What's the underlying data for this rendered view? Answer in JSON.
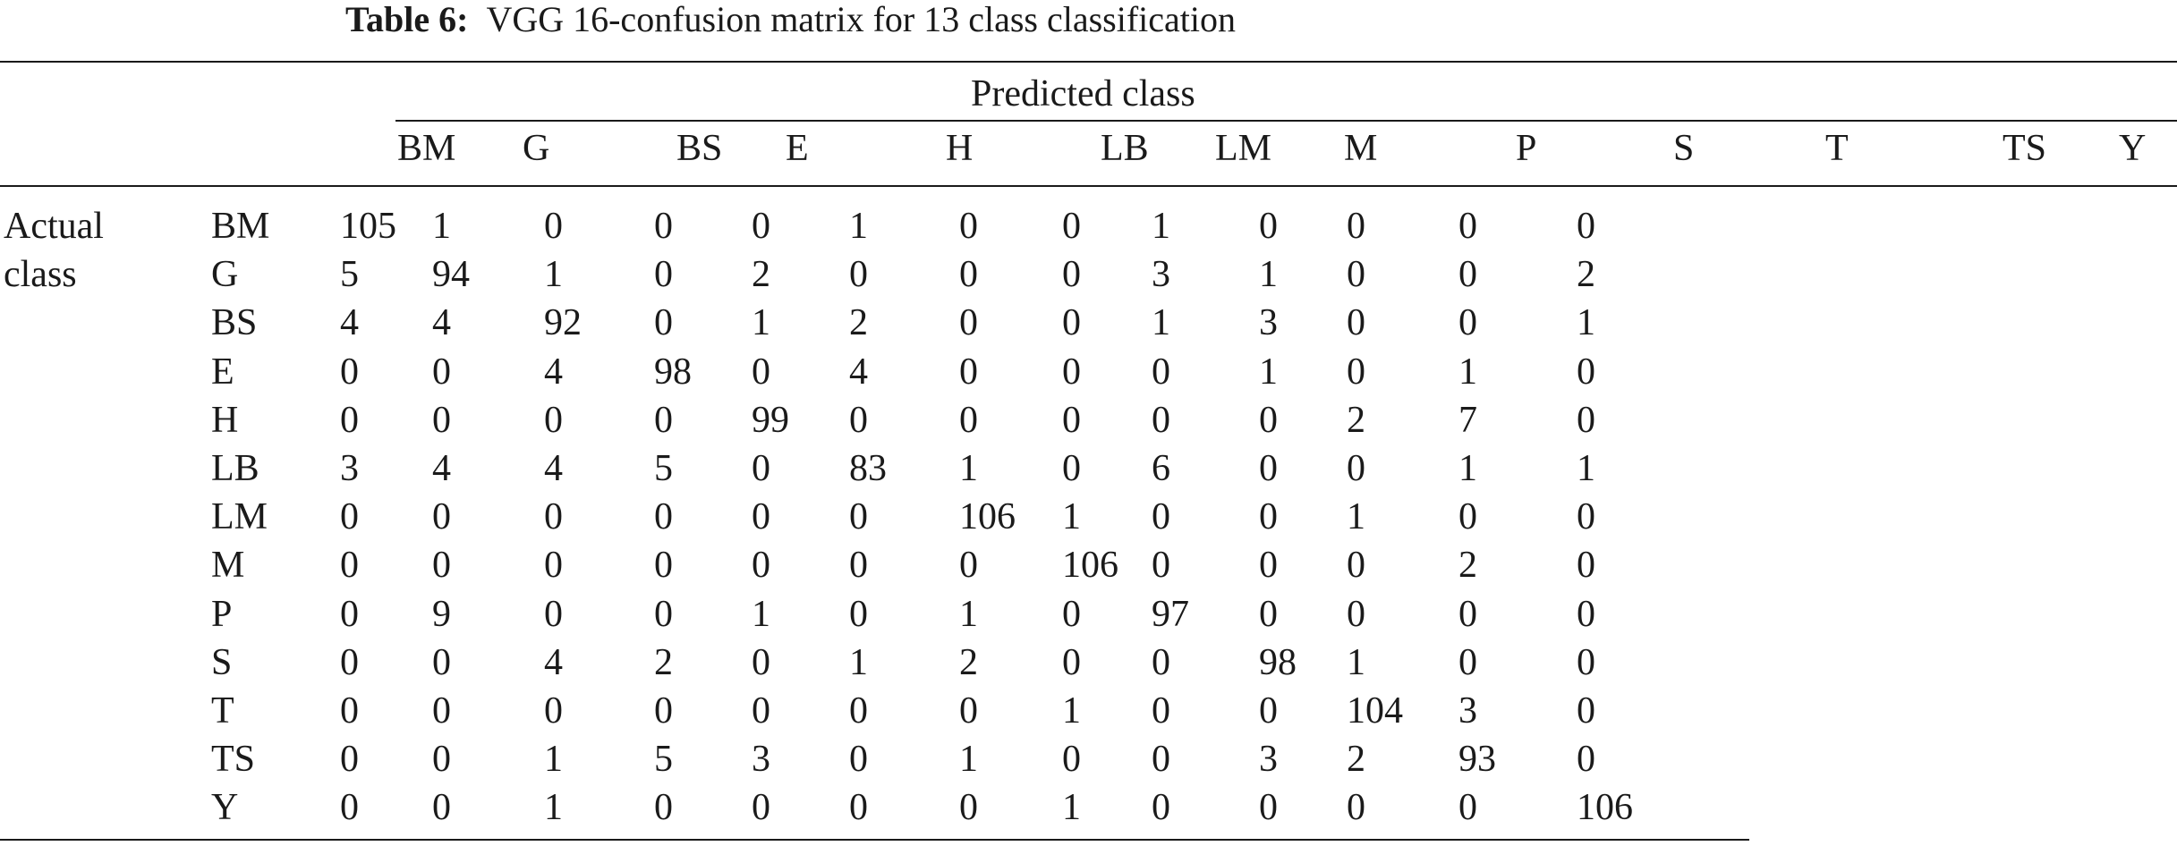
{
  "table": {
    "caption_label": "Table 6:",
    "caption_text": "VGG 16-confusion matrix for 13 class classification",
    "predicted_label": "Predicted class",
    "actual_label_line1": "Actual",
    "actual_label_line2": "class",
    "column_headers": [
      "BM",
      "G",
      "BS",
      "E",
      "H",
      "LB",
      "LM",
      "M",
      "P",
      "S",
      "T",
      "TS",
      "Y"
    ],
    "rows": [
      {
        "label": "BM",
        "values": [
          "105",
          "1",
          "0",
          "0",
          "0",
          "1",
          "0",
          "0",
          "1",
          "0",
          "0",
          "0",
          "0"
        ]
      },
      {
        "label": "G",
        "values": [
          "5",
          "94",
          "1",
          "0",
          "2",
          "0",
          "0",
          "0",
          "3",
          "1",
          "0",
          "0",
          "2"
        ]
      },
      {
        "label": "BS",
        "values": [
          "4",
          "4",
          "92",
          "0",
          "1",
          "2",
          "0",
          "0",
          "1",
          "3",
          "0",
          "0",
          "1"
        ]
      },
      {
        "label": "E",
        "values": [
          "0",
          "0",
          "4",
          "98",
          "0",
          "4",
          "0",
          "0",
          "0",
          "1",
          "0",
          "1",
          "0"
        ]
      },
      {
        "label": "H",
        "values": [
          "0",
          "0",
          "0",
          "0",
          "99",
          "0",
          "0",
          "0",
          "0",
          "0",
          "2",
          "7",
          "0"
        ]
      },
      {
        "label": "LB",
        "values": [
          "3",
          "4",
          "4",
          "5",
          "0",
          "83",
          "1",
          "0",
          "6",
          "0",
          "0",
          "1",
          "1"
        ]
      },
      {
        "label": "LM",
        "values": [
          "0",
          "0",
          "0",
          "0",
          "0",
          "0",
          "106",
          "1",
          "0",
          "0",
          "1",
          "0",
          "0"
        ]
      },
      {
        "label": "M",
        "values": [
          "0",
          "0",
          "0",
          "0",
          "0",
          "0",
          "0",
          "106",
          "0",
          "0",
          "0",
          "2",
          "0"
        ]
      },
      {
        "label": "P",
        "values": [
          "0",
          "9",
          "0",
          "0",
          "1",
          "0",
          "1",
          "0",
          "97",
          "0",
          "0",
          "0",
          "0"
        ]
      },
      {
        "label": "S",
        "values": [
          "0",
          "0",
          "4",
          "2",
          "0",
          "1",
          "2",
          "0",
          "0",
          "98",
          "1",
          "0",
          "0"
        ]
      },
      {
        "label": "T",
        "values": [
          "0",
          "0",
          "0",
          "0",
          "0",
          "0",
          "0",
          "1",
          "0",
          "0",
          "104",
          "3",
          "0"
        ]
      },
      {
        "label": "TS",
        "values": [
          "0",
          "0",
          "1",
          "5",
          "3",
          "0",
          "1",
          "0",
          "0",
          "3",
          "2",
          "93",
          "0"
        ]
      },
      {
        "label": "Y",
        "values": [
          "0",
          "0",
          "1",
          "0",
          "0",
          "0",
          "0",
          "1",
          "0",
          "0",
          "0",
          "0",
          "106"
        ]
      }
    ]
  }
}
